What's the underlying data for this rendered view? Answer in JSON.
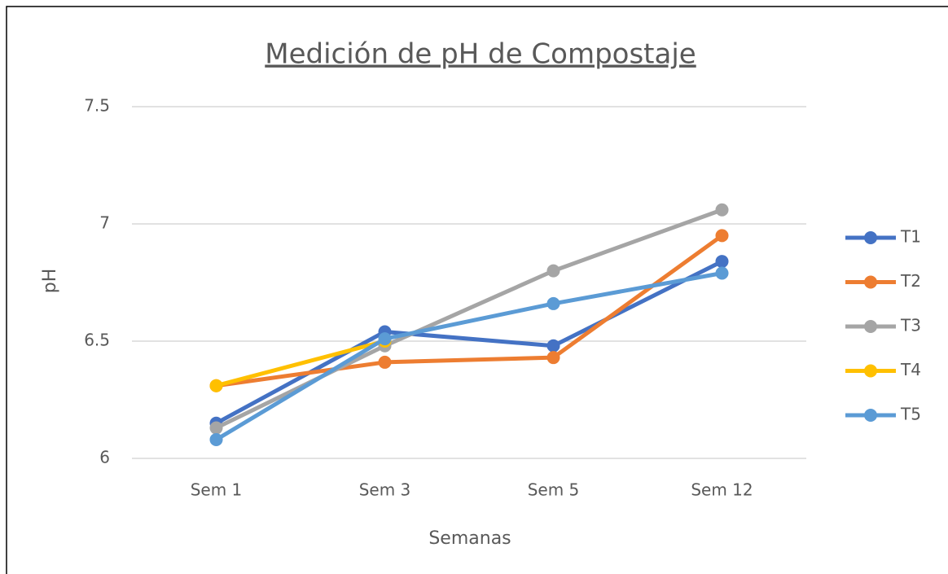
{
  "chart_data": {
    "type": "line",
    "title": "Medición de pH de Compostaje",
    "x_label": "Semanas",
    "y_label": "pH",
    "categories": [
      "Sem 1",
      "Sem 3",
      "Sem 5",
      "Sem 12"
    ],
    "series": [
      {
        "name": "T1",
        "color": "#4472c4",
        "values": [
          6.15,
          6.54,
          6.48,
          6.84
        ]
      },
      {
        "name": "T2",
        "color": "#ed7d31",
        "values": [
          6.31,
          6.41,
          6.43,
          6.95
        ]
      },
      {
        "name": "T3",
        "color": "#a5a5a5",
        "values": [
          6.13,
          6.48,
          6.8,
          7.06
        ]
      },
      {
        "name": "T4",
        "color": "#ffc000",
        "values": [
          6.31,
          6.5,
          null,
          null
        ]
      },
      {
        "name": "T5",
        "color": "#5b9bd5",
        "values": [
          6.08,
          6.51,
          6.66,
          6.79
        ]
      }
    ],
    "ylim": [
      6,
      7.5
    ],
    "yticks": [
      6,
      6.5,
      7,
      7.5
    ],
    "grid": true,
    "legend": "right"
  }
}
